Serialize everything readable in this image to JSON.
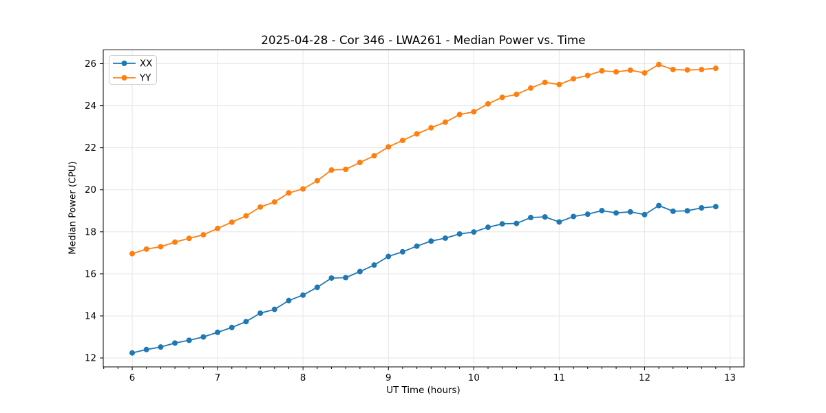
{
  "page": {
    "background": "#ffffff"
  },
  "chart_data": {
    "type": "line",
    "title": "2025-04-28 - Cor 346 - LWA261 - Median Power vs. Time",
    "xlabel": "UT Time (hours)",
    "ylabel": "Median Power (CPU)",
    "xlim": [
      5.661,
      13.165
    ],
    "ylim": [
      11.575,
      26.655
    ],
    "xticks": [
      6,
      7,
      8,
      9,
      10,
      11,
      12,
      13
    ],
    "yticks": [
      12,
      14,
      16,
      18,
      20,
      22,
      24,
      26
    ],
    "x_minor_step": 0.166667,
    "grid": true,
    "grid_color": "#e6e6e6",
    "spine_color": "#000000",
    "text_color": "#000000",
    "legend": {
      "position": "upper-left",
      "entries": [
        "XX",
        "YY"
      ]
    },
    "marker": "circle",
    "x": [
      6.0,
      6.1667,
      6.3333,
      6.5,
      6.6667,
      6.8333,
      7.0,
      7.1667,
      7.3333,
      7.5,
      7.6667,
      7.8333,
      8.0,
      8.1667,
      8.3333,
      8.5,
      8.6667,
      8.8333,
      9.0,
      9.1667,
      9.3333,
      9.5,
      9.6667,
      9.8333,
      10.0,
      10.1667,
      10.3333,
      10.5,
      10.6667,
      10.8333,
      11.0,
      11.1667,
      11.3333,
      11.5,
      11.6667,
      11.8333,
      12.0,
      12.1667,
      12.3333,
      12.5,
      12.6667,
      12.8333
    ],
    "series": [
      {
        "name": "XX",
        "color": "#1f77b4",
        "values": [
          12.24,
          12.4,
          12.52,
          12.71,
          12.84,
          13.0,
          13.22,
          13.45,
          13.73,
          14.13,
          14.31,
          14.73,
          14.99,
          15.36,
          15.8,
          15.82,
          16.11,
          16.42,
          16.83,
          17.05,
          17.32,
          17.56,
          17.7,
          17.9,
          17.99,
          18.22,
          18.38,
          18.4,
          18.68,
          18.71,
          18.47,
          18.73,
          18.84,
          19.01,
          18.9,
          18.95,
          18.82,
          19.25,
          18.98,
          19.0,
          19.14,
          19.2
        ]
      },
      {
        "name": "YY",
        "color": "#ff7f0e",
        "values": [
          16.96,
          17.18,
          17.29,
          17.51,
          17.69,
          17.86,
          18.16,
          18.46,
          18.76,
          19.18,
          19.42,
          19.85,
          20.04,
          20.43,
          20.94,
          20.97,
          21.3,
          21.62,
          22.04,
          22.35,
          22.66,
          22.95,
          23.22,
          23.58,
          23.71,
          24.09,
          24.4,
          24.54,
          24.84,
          25.11,
          25.01,
          25.28,
          25.44,
          25.66,
          25.61,
          25.69,
          25.56,
          25.96,
          25.72,
          25.7,
          25.72,
          25.78
        ]
      }
    ]
  }
}
